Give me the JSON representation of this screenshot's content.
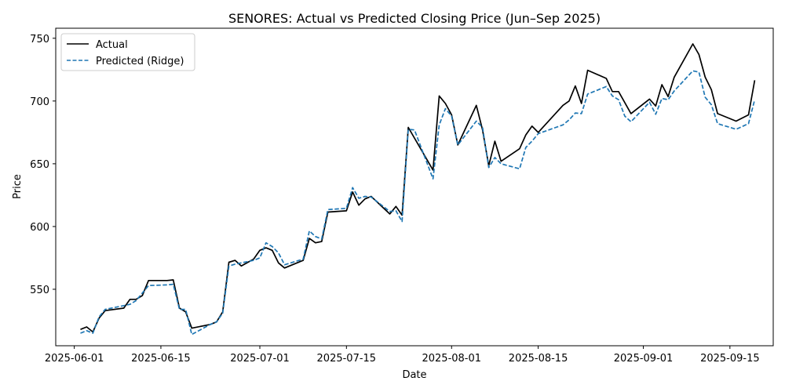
{
  "chart_data": {
    "type": "line",
    "title": "SENORES: Actual vs Predicted Closing Price (Jun–Sep 2025)",
    "xlabel": "Date",
    "ylabel": "Price",
    "xlim": [
      "2025-05-29",
      "2025-09-22"
    ],
    "ylim": [
      505,
      758
    ],
    "x_ticks": [
      "2025-06-01",
      "2025-06-15",
      "2025-07-01",
      "2025-07-15",
      "2025-08-01",
      "2025-08-15",
      "2025-09-01",
      "2025-09-15"
    ],
    "y_ticks": [
      550,
      600,
      650,
      700,
      750
    ],
    "grid": false,
    "legend_position": "upper left",
    "series": [
      {
        "name": "Actual",
        "color": "#000000",
        "style": "solid",
        "points": [
          [
            "2025-06-02",
            518
          ],
          [
            "2025-06-03",
            520
          ],
          [
            "2025-06-04",
            516
          ],
          [
            "2025-06-05",
            527
          ],
          [
            "2025-06-06",
            533
          ],
          [
            "2025-06-09",
            535
          ],
          [
            "2025-06-10",
            542
          ],
          [
            "2025-06-11",
            542
          ],
          [
            "2025-06-12",
            545
          ],
          [
            "2025-06-13",
            557
          ],
          [
            "2025-06-16",
            557
          ],
          [
            "2025-06-17",
            557.5
          ],
          [
            "2025-06-18",
            535
          ],
          [
            "2025-06-19",
            532
          ],
          [
            "2025-06-20",
            519
          ],
          [
            "2025-06-23",
            522
          ],
          [
            "2025-06-24",
            524
          ],
          [
            "2025-06-25",
            532
          ],
          [
            "2025-06-26",
            571.5
          ],
          [
            "2025-06-27",
            573
          ],
          [
            "2025-06-28",
            568.5
          ],
          [
            "2025-06-30",
            574
          ],
          [
            "2025-07-01",
            581
          ],
          [
            "2025-07-02",
            583
          ],
          [
            "2025-07-03",
            581
          ],
          [
            "2025-07-04",
            571
          ],
          [
            "2025-07-05",
            567
          ],
          [
            "2025-07-08",
            573
          ],
          [
            "2025-07-09",
            590.5
          ],
          [
            "2025-07-10",
            587
          ],
          [
            "2025-07-11",
            588
          ],
          [
            "2025-07-12",
            611.5
          ],
          [
            "2025-07-15",
            612.5
          ],
          [
            "2025-07-16",
            627.5
          ],
          [
            "2025-07-17",
            617
          ],
          [
            "2025-07-18",
            622
          ],
          [
            "2025-07-19",
            624
          ],
          [
            "2025-07-22",
            610
          ],
          [
            "2025-07-23",
            616
          ],
          [
            "2025-07-24",
            609
          ],
          [
            "2025-07-25",
            679
          ],
          [
            "2025-07-29",
            645
          ],
          [
            "2025-07-30",
            704
          ],
          [
            "2025-07-31",
            698
          ],
          [
            "2025-08-01",
            689
          ],
          [
            "2025-08-02",
            665
          ],
          [
            "2025-08-05",
            696.5
          ],
          [
            "2025-08-06",
            677
          ],
          [
            "2025-08-07",
            648.5
          ],
          [
            "2025-08-08",
            668
          ],
          [
            "2025-08-09",
            652
          ],
          [
            "2025-08-12",
            662
          ],
          [
            "2025-08-13",
            673
          ],
          [
            "2025-08-14",
            680
          ],
          [
            "2025-08-15",
            675
          ],
          [
            "2025-08-19",
            696.5
          ],
          [
            "2025-08-20",
            700
          ],
          [
            "2025-08-21",
            712
          ],
          [
            "2025-08-22",
            698
          ],
          [
            "2025-08-23",
            724.5
          ],
          [
            "2025-08-26",
            718
          ],
          [
            "2025-08-27",
            707.5
          ],
          [
            "2025-08-28",
            707.5
          ],
          [
            "2025-08-30",
            690
          ],
          [
            "2025-09-02",
            701.5
          ],
          [
            "2025-09-03",
            696
          ],
          [
            "2025-09-04",
            713
          ],
          [
            "2025-09-05",
            703.5
          ],
          [
            "2025-09-06",
            719
          ],
          [
            "2025-09-09",
            745.5
          ],
          [
            "2025-09-10",
            737
          ],
          [
            "2025-09-11",
            719
          ],
          [
            "2025-09-12",
            709
          ],
          [
            "2025-09-13",
            690
          ],
          [
            "2025-09-16",
            684
          ],
          [
            "2025-09-18",
            689
          ],
          [
            "2025-09-19",
            716.5
          ]
        ]
      },
      {
        "name": "Predicted (Ridge)",
        "color": "#1f77b4",
        "style": "dashed",
        "points": [
          [
            "2025-06-02",
            515
          ],
          [
            "2025-06-03",
            517
          ],
          [
            "2025-06-04",
            515
          ],
          [
            "2025-06-05",
            528
          ],
          [
            "2025-06-06",
            534
          ],
          [
            "2025-06-09",
            537
          ],
          [
            "2025-06-10",
            538
          ],
          [
            "2025-06-11",
            541
          ],
          [
            "2025-06-12",
            547
          ],
          [
            "2025-06-13",
            553
          ],
          [
            "2025-06-16",
            553.5
          ],
          [
            "2025-06-17",
            554
          ],
          [
            "2025-06-18",
            534
          ],
          [
            "2025-06-19",
            534
          ],
          [
            "2025-06-20",
            514
          ],
          [
            "2025-06-23",
            522
          ],
          [
            "2025-06-24",
            524
          ],
          [
            "2025-06-25",
            531
          ],
          [
            "2025-06-26",
            568.5
          ],
          [
            "2025-06-27",
            570
          ],
          [
            "2025-06-28",
            571
          ],
          [
            "2025-06-30",
            573
          ],
          [
            "2025-07-01",
            575
          ],
          [
            "2025-07-02",
            587
          ],
          [
            "2025-07-03",
            584
          ],
          [
            "2025-07-04",
            579
          ],
          [
            "2025-07-05",
            569.5
          ],
          [
            "2025-07-08",
            574
          ],
          [
            "2025-07-09",
            596.5
          ],
          [
            "2025-07-10",
            592
          ],
          [
            "2025-07-11",
            590
          ],
          [
            "2025-07-12",
            613.5
          ],
          [
            "2025-07-15",
            614.5
          ],
          [
            "2025-07-16",
            631
          ],
          [
            "2025-07-17",
            622.5
          ],
          [
            "2025-07-18",
            624
          ],
          [
            "2025-07-19",
            623.5
          ],
          [
            "2025-07-22",
            612
          ],
          [
            "2025-07-23",
            612.5
          ],
          [
            "2025-07-24",
            604
          ],
          [
            "2025-07-25",
            677.5
          ],
          [
            "2025-07-26",
            677
          ],
          [
            "2025-07-29",
            638
          ],
          [
            "2025-07-30",
            681
          ],
          [
            "2025-07-31",
            694
          ],
          [
            "2025-08-01",
            688
          ],
          [
            "2025-08-02",
            665
          ],
          [
            "2025-08-05",
            684
          ],
          [
            "2025-08-06",
            679
          ],
          [
            "2025-08-07",
            647
          ],
          [
            "2025-08-08",
            655
          ],
          [
            "2025-08-09",
            650
          ],
          [
            "2025-08-12",
            646
          ],
          [
            "2025-08-13",
            663
          ],
          [
            "2025-08-14",
            668
          ],
          [
            "2025-08-15",
            674
          ],
          [
            "2025-08-19",
            681
          ],
          [
            "2025-08-20",
            685
          ],
          [
            "2025-08-21",
            690.5
          ],
          [
            "2025-08-22",
            690
          ],
          [
            "2025-08-23",
            705.5
          ],
          [
            "2025-08-26",
            711.5
          ],
          [
            "2025-08-27",
            704
          ],
          [
            "2025-08-28",
            701
          ],
          [
            "2025-08-29",
            688
          ],
          [
            "2025-08-30",
            683.5
          ],
          [
            "2025-09-02",
            699
          ],
          [
            "2025-09-03",
            689.5
          ],
          [
            "2025-09-04",
            702
          ],
          [
            "2025-09-05",
            701
          ],
          [
            "2025-09-06",
            708
          ],
          [
            "2025-09-09",
            724
          ],
          [
            "2025-09-10",
            723
          ],
          [
            "2025-09-11",
            703
          ],
          [
            "2025-09-12",
            697
          ],
          [
            "2025-09-13",
            682
          ],
          [
            "2025-09-16",
            677.5
          ],
          [
            "2025-09-18",
            682
          ],
          [
            "2025-09-19",
            701
          ]
        ]
      }
    ]
  }
}
